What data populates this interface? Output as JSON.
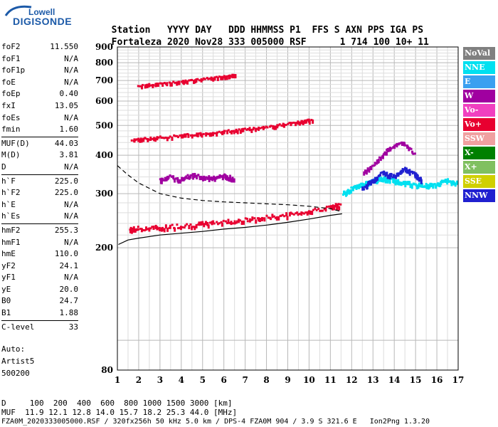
{
  "logo": {
    "line1": "Lowell",
    "line2": "DIGISONDE"
  },
  "header": {
    "labels": [
      "Station",
      "YYYY",
      "DAY",
      "DDD",
      "HHMMSS",
      "P1",
      "FFS",
      "S",
      "AXN",
      "PPS",
      "IGA",
      "PS"
    ],
    "values": [
      "Fortaleza",
      "2020",
      "Nov28",
      "333",
      "005000",
      "RSF",
      "",
      "1",
      "714",
      "100",
      "10+",
      "11"
    ]
  },
  "params": [
    [
      {
        "k": "foF2",
        "v": "11.550"
      },
      {
        "k": "foF1",
        "v": "N/A"
      },
      {
        "k": "foF1p",
        "v": "N/A"
      },
      {
        "k": "foE",
        "v": "N/A"
      },
      {
        "k": "foEp",
        "v": "0.40"
      },
      {
        "k": "fxI",
        "v": "13.05"
      },
      {
        "k": "foEs",
        "v": "N/A"
      },
      {
        "k": "fmin",
        "v": "1.60"
      }
    ],
    [
      {
        "k": "MUF(D)",
        "v": "44.03"
      },
      {
        "k": "M(D)",
        "v": "3.81"
      },
      {
        "k": "D",
        "v": "N/A"
      }
    ],
    [
      {
        "k": "h`F",
        "v": "225.0"
      },
      {
        "k": "h`F2",
        "v": "225.0"
      },
      {
        "k": "h`E",
        "v": "N/A"
      },
      {
        "k": "h`Es",
        "v": "N/A"
      }
    ],
    [
      {
        "k": "hmF2",
        "v": "255.3"
      },
      {
        "k": "hmF1",
        "v": "N/A"
      },
      {
        "k": "hmE",
        "v": "110.0"
      },
      {
        "k": "yF2",
        "v": "24.1"
      },
      {
        "k": "yF1",
        "v": "N/A"
      },
      {
        "k": "yE",
        "v": "20.0"
      },
      {
        "k": "B0",
        "v": "24.7"
      },
      {
        "k": "B1",
        "v": "1.88"
      }
    ],
    [
      {
        "k": "C-level",
        "v": "33"
      }
    ]
  ],
  "auto": {
    "line1": "Auto:",
    "line2": "Artist5",
    "line3": "500200"
  },
  "legend": [
    {
      "label": "NoVal",
      "color": "#808080"
    },
    {
      "label": "NNE",
      "color": "#00e0f0"
    },
    {
      "label": "E",
      "color": "#3aa0f0"
    },
    {
      "label": "W",
      "color": "#a000a0"
    },
    {
      "label": "Vo-",
      "color": "#f040c0"
    },
    {
      "label": "Vo+",
      "color": "#e80030"
    },
    {
      "label": "SSW",
      "color": "#f0a0a0"
    },
    {
      "label": "X-",
      "color": "#008000"
    },
    {
      "label": "X+",
      "color": "#80c060"
    },
    {
      "label": "SSE",
      "color": "#d0d000"
    },
    {
      "label": "NNW",
      "color": "#2020d0"
    }
  ],
  "footer": {
    "line1": "D     100  200  400  600  800 1000 1500 3000 [km]",
    "line2": "MUF  11.9 12.1 12.8 14.0 15.7 18.2 25.3 44.0 [MHz]",
    "line3": "FZA0M_2020333005000.RSF / 320fx256h 50 kHz 5.0 km / DPS-4 FZA0M 904 / 3.9 S 321.6 E   Ion2Png 1.3.20"
  },
  "chart_data": {
    "type": "scatter",
    "xlim": [
      1,
      17
    ],
    "ylim": [
      80,
      900
    ],
    "ylog": true,
    "x_ticks": [
      1,
      2,
      3,
      4,
      5,
      6,
      7,
      8,
      9,
      10,
      11,
      12,
      13,
      14,
      15,
      16,
      17
    ],
    "y_ticks": [
      80,
      200,
      300,
      400,
      500,
      600,
      700,
      800,
      900
    ],
    "grid": true,
    "traces": [
      {
        "color": "#e80030",
        "x": [
          1.6,
          2,
          3,
          4,
          5,
          6,
          7,
          8,
          9,
          10,
          11,
          11.5
        ],
        "y": [
          228,
          230,
          232,
          235,
          238,
          242,
          245,
          250,
          255,
          262,
          270,
          275
        ]
      },
      {
        "color": "#e80030",
        "x": [
          1.7,
          2.5,
          3.5,
          4.5,
          5.5,
          6.5,
          7.5,
          8.5,
          9.5,
          10.2
        ],
        "y": [
          448,
          452,
          458,
          465,
          472,
          480,
          488,
          498,
          510,
          520
        ]
      },
      {
        "color": "#e80030",
        "x": [
          2,
          3,
          4,
          5,
          6,
          6.6
        ],
        "y": [
          672,
          680,
          692,
          705,
          718,
          728
        ]
      },
      {
        "color": "#a000a0",
        "x": [
          3,
          3.5,
          4,
          4.5,
          5,
          5.5,
          6,
          6.5
        ],
        "y": [
          330,
          340,
          332,
          345,
          338,
          336,
          342,
          335
        ]
      },
      {
        "color": "#00e0f0",
        "x": [
          11.6,
          12,
          12.5,
          13,
          13.5,
          14,
          14.5,
          15,
          15.5,
          16,
          16.5,
          17
        ],
        "y": [
          300,
          310,
          320,
          330,
          335,
          330,
          325,
          320,
          318,
          322,
          330,
          325
        ]
      },
      {
        "color": "#2020d0",
        "x": [
          12.5,
          13,
          13.5,
          14,
          14.5,
          15,
          15.3
        ],
        "y": [
          310,
          330,
          350,
          340,
          360,
          345,
          330
        ]
      },
      {
        "color": "#a000a0",
        "x": [
          12.6,
          13.2,
          13.8,
          14.4,
          15
        ],
        "y": [
          350,
          380,
          420,
          440,
          400
        ]
      }
    ],
    "profile_solid": {
      "x": [
        1.05,
        1.5,
        2,
        3,
        4,
        5,
        6,
        7,
        8,
        9,
        10,
        11,
        11.55
      ],
      "y": [
        205,
        212,
        215,
        220,
        223,
        226,
        230,
        233,
        237,
        242,
        248,
        255,
        258
      ]
    },
    "profile_dashed": {
      "x": [
        1,
        1.5,
        2,
        3,
        4,
        5,
        6,
        7,
        8,
        9,
        10,
        11,
        11.55
      ],
      "y": [
        370,
        345,
        325,
        300,
        290,
        285,
        282,
        280,
        278,
        276,
        273,
        268,
        262
      ]
    }
  }
}
